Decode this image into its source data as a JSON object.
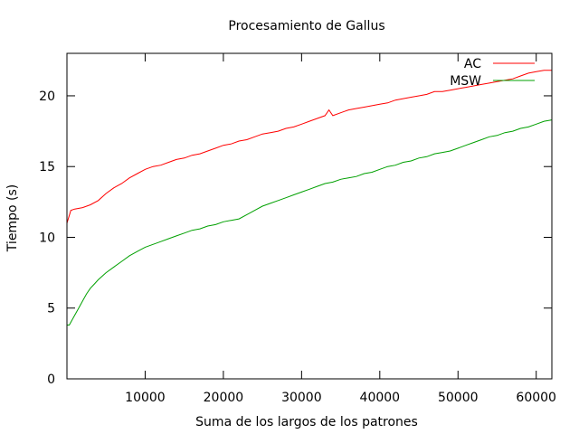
{
  "chart_data": {
    "type": "line",
    "title": "Procesamiento de Gallus",
    "xlabel": "Suma de los largos de los patrones",
    "ylabel": "Tiempo (s)",
    "xlim": [
      0,
      62000
    ],
    "ylim": [
      0,
      23
    ],
    "xticks": [
      10000,
      20000,
      30000,
      40000,
      50000,
      60000
    ],
    "yticks": [
      0,
      5,
      10,
      15,
      20
    ],
    "grid": false,
    "legend_position": "top-right",
    "series": [
      {
        "name": "AC",
        "color": "#ff0000",
        "x": [
          0,
          500,
          1000,
          2000,
          3000,
          4000,
          5000,
          6000,
          7000,
          8000,
          9000,
          10000,
          11000,
          12000,
          13000,
          14000,
          15000,
          16000,
          17000,
          18000,
          19000,
          20000,
          21000,
          22000,
          23000,
          24000,
          25000,
          26000,
          27000,
          28000,
          29000,
          30000,
          31000,
          32000,
          33000,
          33500,
          34000,
          35000,
          36000,
          37000,
          38000,
          39000,
          40000,
          41000,
          42000,
          43000,
          44000,
          45000,
          46000,
          47000,
          48000,
          49000,
          50000,
          51000,
          52000,
          53000,
          54000,
          55000,
          56000,
          57000,
          58000,
          59000,
          60000,
          61000,
          62000
        ],
        "y": [
          11.0,
          11.9,
          12.0,
          12.1,
          12.3,
          12.6,
          13.1,
          13.5,
          13.8,
          14.2,
          14.5,
          14.8,
          15.0,
          15.1,
          15.3,
          15.5,
          15.6,
          15.8,
          15.9,
          16.1,
          16.3,
          16.5,
          16.6,
          16.8,
          16.9,
          17.1,
          17.3,
          17.4,
          17.5,
          17.7,
          17.8,
          18.0,
          18.2,
          18.4,
          18.6,
          19.0,
          18.6,
          18.8,
          19.0,
          19.1,
          19.2,
          19.3,
          19.4,
          19.5,
          19.7,
          19.8,
          19.9,
          20.0,
          20.1,
          20.3,
          20.3,
          20.4,
          20.5,
          20.6,
          20.7,
          20.8,
          20.9,
          21.0,
          21.1,
          21.2,
          21.4,
          21.6,
          21.7,
          21.8,
          21.8
        ]
      },
      {
        "name": "MSW",
        "color": "#00a000",
        "x": [
          0,
          300,
          600,
          1000,
          1500,
          2000,
          2500,
          3000,
          3500,
          4000,
          5000,
          6000,
          7000,
          8000,
          9000,
          10000,
          11000,
          12000,
          13000,
          14000,
          15000,
          16000,
          17000,
          18000,
          19000,
          20000,
          21000,
          22000,
          23000,
          24000,
          25000,
          26000,
          27000,
          28000,
          29000,
          30000,
          31000,
          32000,
          33000,
          34000,
          35000,
          36000,
          37000,
          38000,
          39000,
          40000,
          41000,
          42000,
          43000,
          44000,
          45000,
          46000,
          47000,
          48000,
          49000,
          50000,
          51000,
          52000,
          53000,
          54000,
          55000,
          56000,
          57000,
          58000,
          59000,
          60000,
          61000,
          62000
        ],
        "y": [
          3.8,
          3.8,
          4.1,
          4.5,
          5.0,
          5.5,
          6.0,
          6.4,
          6.7,
          7.0,
          7.5,
          7.9,
          8.3,
          8.7,
          9.0,
          9.3,
          9.5,
          9.7,
          9.9,
          10.1,
          10.3,
          10.5,
          10.6,
          10.8,
          10.9,
          11.1,
          11.2,
          11.3,
          11.6,
          11.9,
          12.2,
          12.4,
          12.6,
          12.8,
          13.0,
          13.2,
          13.4,
          13.6,
          13.8,
          13.9,
          14.1,
          14.2,
          14.3,
          14.5,
          14.6,
          14.8,
          15.0,
          15.1,
          15.3,
          15.4,
          15.6,
          15.7,
          15.9,
          16.0,
          16.1,
          16.3,
          16.5,
          16.7,
          16.9,
          17.1,
          17.2,
          17.4,
          17.5,
          17.7,
          17.8,
          18.0,
          18.2,
          18.3
        ]
      }
    ]
  }
}
